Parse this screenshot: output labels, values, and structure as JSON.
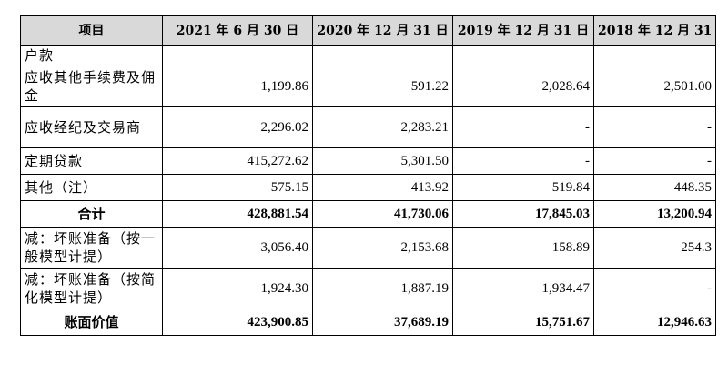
{
  "table": {
    "headers": [
      "项目",
      "2021 年 6 月 30 日",
      "2020 年 12 月 31 日",
      "2019 年 12 月 31 日",
      "2018 年 12 月 31 日"
    ],
    "rows": [
      {
        "label": "户款",
        "values": [
          "",
          "",
          "",
          ""
        ]
      },
      {
        "label": "应收其他手续费及佣金",
        "values": [
          "1,199.86",
          "591.22",
          "2,028.64",
          "2,501.00"
        ]
      },
      {
        "label": "应收经纪及交易商",
        "values": [
          "2,296.02",
          "2,283.21",
          "-",
          "-"
        ]
      },
      {
        "label": "定期贷款",
        "values": [
          "415,272.62",
          "5,301.50",
          "-",
          "-"
        ]
      },
      {
        "label": "其他（注）",
        "values": [
          "575.15",
          "413.92",
          "519.84",
          "448.35"
        ]
      },
      {
        "label": "合计",
        "values": [
          "428,881.54",
          "41,730.06",
          "17,845.03",
          "13,200.94"
        ]
      },
      {
        "label": "减：坏账准备（按一般模型计提）",
        "values": [
          "3,056.40",
          "2,153.68",
          "158.89",
          "254.3"
        ]
      },
      {
        "label": "减：坏账准备（按简化模型计提）",
        "values": [
          "1,924.30",
          "1,887.19",
          "1,934.47",
          "-"
        ]
      },
      {
        "label": "账面价值",
        "values": [
          "423,900.85",
          "37,689.19",
          "15,751.67",
          "12,946.63"
        ]
      }
    ]
  }
}
